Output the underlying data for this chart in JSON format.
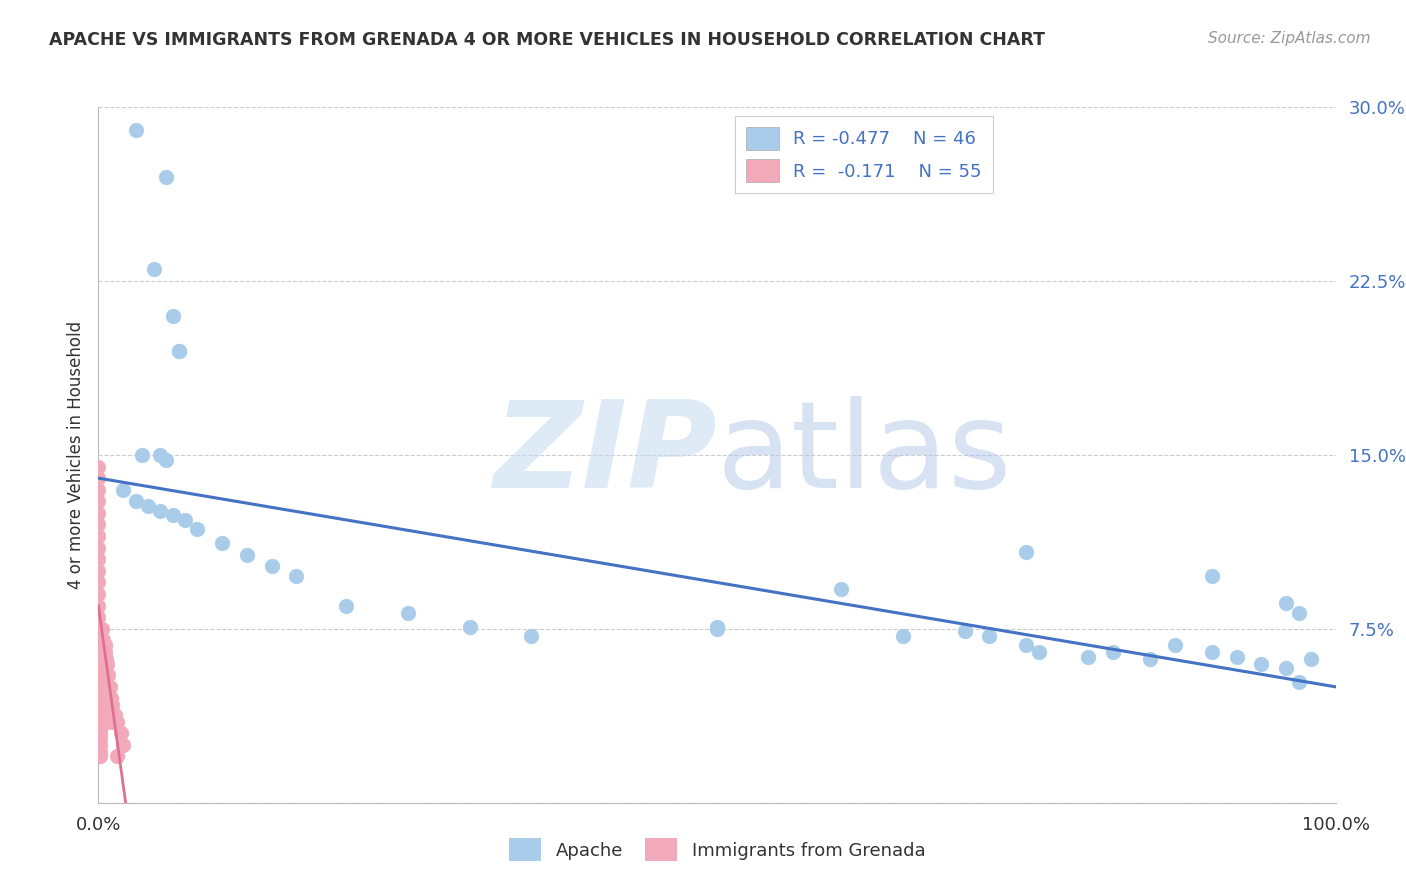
{
  "title": "APACHE VS IMMIGRANTS FROM GRENADA 4 OR MORE VEHICLES IN HOUSEHOLD CORRELATION CHART",
  "source": "Source: ZipAtlas.com",
  "ylabel": "4 or more Vehicles in Household",
  "xlim": [
    0,
    1.0
  ],
  "ylim": [
    0,
    0.3
  ],
  "yticks": [
    0.0,
    0.075,
    0.15,
    0.225,
    0.3
  ],
  "ytick_labels": [
    "",
    "7.5%",
    "15.0%",
    "22.5%",
    "30.0%"
  ],
  "legend_apache_R": "-0.477",
  "legend_apache_N": "46",
  "legend_grenada_R": "-0.171",
  "legend_grenada_N": "55",
  "apache_color": "#A8CCEA",
  "grenada_color": "#F2AABB",
  "apache_line_color": "#4472C4",
  "grenada_line_color": "#E07090",
  "apache_x": [
    0.03,
    0.055,
    0.045,
    0.06,
    0.065,
    0.065,
    0.035,
    0.05,
    0.055,
    0.02,
    0.03,
    0.04,
    0.05,
    0.06,
    0.07,
    0.08,
    0.1,
    0.12,
    0.14,
    0.16,
    0.2,
    0.25,
    0.3,
    0.35,
    0.5,
    0.6,
    0.65,
    0.7,
    0.72,
    0.75,
    0.76,
    0.8,
    0.82,
    0.85,
    0.87,
    0.9,
    0.92,
    0.94,
    0.96,
    0.97,
    0.98,
    0.75,
    0.9,
    0.96,
    0.97,
    0.5
  ],
  "apache_y": [
    0.29,
    0.27,
    0.23,
    0.21,
    0.195,
    0.195,
    0.15,
    0.15,
    0.148,
    0.135,
    0.13,
    0.128,
    0.126,
    0.124,
    0.122,
    0.118,
    0.112,
    0.107,
    0.102,
    0.098,
    0.085,
    0.082,
    0.076,
    0.072,
    0.076,
    0.092,
    0.072,
    0.074,
    0.072,
    0.068,
    0.065,
    0.063,
    0.065,
    0.062,
    0.068,
    0.065,
    0.063,
    0.06,
    0.058,
    0.052,
    0.062,
    0.108,
    0.098,
    0.086,
    0.082,
    0.075
  ],
  "grenada_x": [
    0.0,
    0.0,
    0.0,
    0.0,
    0.0,
    0.0,
    0.0,
    0.0,
    0.0,
    0.0,
    0.0,
    0.0,
    0.0,
    0.0,
    0.0,
    0.0,
    0.0,
    0.0,
    0.0,
    0.0,
    0.002,
    0.003,
    0.004,
    0.005,
    0.005,
    0.006,
    0.007,
    0.008,
    0.009,
    0.01,
    0.011,
    0.013,
    0.015,
    0.018,
    0.02,
    0.0,
    0.001,
    0.001,
    0.001,
    0.001,
    0.001,
    0.001,
    0.001,
    0.001,
    0.001,
    0.002,
    0.003,
    0.004,
    0.005,
    0.006,
    0.007,
    0.008,
    0.009,
    0.01,
    0.015
  ],
  "grenada_y": [
    0.145,
    0.14,
    0.135,
    0.13,
    0.125,
    0.12,
    0.115,
    0.11,
    0.105,
    0.1,
    0.095,
    0.09,
    0.085,
    0.08,
    0.075,
    0.07,
    0.065,
    0.06,
    0.055,
    0.05,
    0.075,
    0.075,
    0.07,
    0.068,
    0.065,
    0.062,
    0.06,
    0.055,
    0.05,
    0.045,
    0.042,
    0.038,
    0.035,
    0.03,
    0.025,
    0.045,
    0.04,
    0.038,
    0.035,
    0.032,
    0.03,
    0.028,
    0.025,
    0.022,
    0.02,
    0.065,
    0.06,
    0.058,
    0.055,
    0.05,
    0.048,
    0.045,
    0.04,
    0.035,
    0.02
  ],
  "apache_line_x0": 0.0,
  "apache_line_y0": 0.14,
  "apache_line_x1": 1.0,
  "apache_line_y1": 0.05,
  "grenada_line_x0": 0.0,
  "grenada_line_y0": 0.085,
  "grenada_line_x1": 0.022,
  "grenada_line_y1": 0.0,
  "background_color": "#FFFFFF",
  "grid_color": "#CCCCCC"
}
